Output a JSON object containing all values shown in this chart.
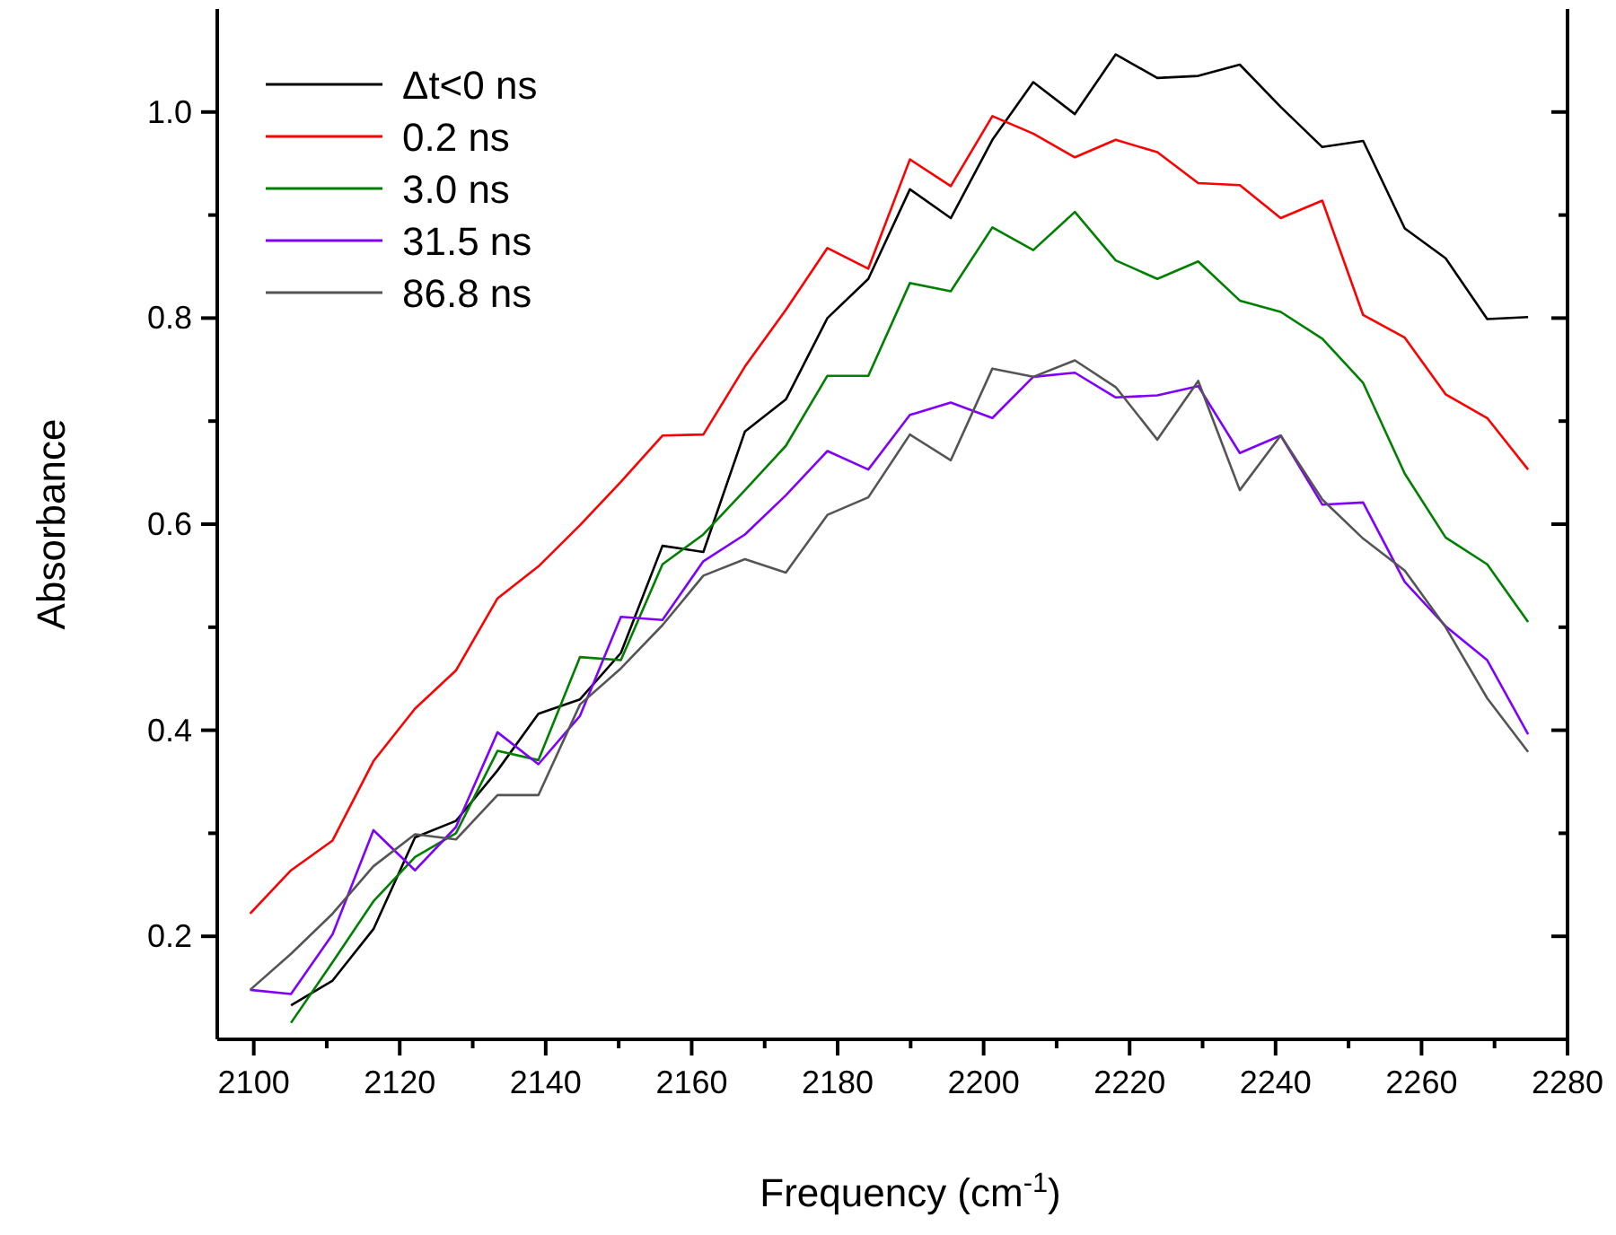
{
  "chart_data": {
    "type": "line",
    "xlabel": "Frequency (cm$^{-1}$)",
    "ylabel": "Absorbance",
    "x": [
      2099.5,
      2105.1,
      2110.8,
      2116.4,
      2122.1,
      2127.7,
      2133.4,
      2139.0,
      2144.7,
      2150.3,
      2156.0,
      2161.6,
      2167.3,
      2172.9,
      2178.6,
      2184.2,
      2189.9,
      2195.5,
      2201.2,
      2206.8,
      2212.5,
      2218.1,
      2223.8,
      2229.4,
      2235.1,
      2240.7,
      2246.4,
      2252.0,
      2257.7,
      2263.3,
      2269.0,
      2274.6
    ],
    "series": [
      {
        "name": "Δt<0 ns",
        "color": "#000000",
        "values": [
          null,
          0.133,
          0.157,
          0.207,
          0.296,
          0.312,
          0.361,
          0.416,
          0.43,
          0.475,
          0.579,
          0.573,
          0.69,
          0.721,
          0.8,
          0.838,
          0.925,
          0.897,
          0.973,
          1.029,
          0.998,
          1.056,
          1.033,
          1.035,
          1.046,
          1.005,
          0.966,
          0.972,
          0.887,
          0.858,
          0.799,
          0.801
        ]
      },
      {
        "name": "0.2 ns",
        "color": "#ff0000",
        "values": [
          0.222,
          0.264,
          0.293,
          0.37,
          0.421,
          0.458,
          0.528,
          0.559,
          0.599,
          0.641,
          0.686,
          0.687,
          0.753,
          0.808,
          0.868,
          0.848,
          0.954,
          0.928,
          0.996,
          0.979,
          0.956,
          0.973,
          0.961,
          0.931,
          0.929,
          0.897,
          0.914,
          0.803,
          0.781,
          0.726,
          0.703,
          0.653
        ]
      },
      {
        "name": "3.0 ns",
        "color": "#008000",
        "values": [
          null,
          0.116,
          0.175,
          0.234,
          0.277,
          0.3,
          0.38,
          0.371,
          0.471,
          0.468,
          0.561,
          0.59,
          0.633,
          0.676,
          0.744,
          0.744,
          0.834,
          0.826,
          0.888,
          0.866,
          0.903,
          0.856,
          0.838,
          0.855,
          0.817,
          0.806,
          0.78,
          0.737,
          0.649,
          0.587,
          0.561,
          0.505
        ]
      },
      {
        "name": "31.5 ns",
        "color": "#8000ff",
        "values": [
          0.148,
          0.144,
          0.202,
          0.303,
          0.264,
          0.306,
          0.398,
          0.367,
          0.414,
          0.51,
          0.507,
          0.564,
          0.59,
          0.628,
          0.671,
          0.653,
          0.706,
          0.718,
          0.703,
          0.743,
          0.747,
          0.723,
          0.725,
          0.734,
          0.669,
          0.686,
          0.619,
          0.621,
          0.544,
          0.501,
          0.468,
          0.396
        ]
      },
      {
        "name": "86.8 ns",
        "color": "#555555",
        "values": [
          0.148,
          0.183,
          0.222,
          0.268,
          0.299,
          0.294,
          0.337,
          0.337,
          0.425,
          0.46,
          0.502,
          0.55,
          0.566,
          0.553,
          0.609,
          0.626,
          0.687,
          0.662,
          0.751,
          0.743,
          0.759,
          0.733,
          0.682,
          0.739,
          0.633,
          0.686,
          0.624,
          0.586,
          0.555,
          0.5,
          0.431,
          0.379
        ]
      }
    ],
    "xlim": [
      2095,
      2280
    ],
    "ylim": [
      0.1,
      1.1
    ],
    "xticks": [
      2100,
      {
        "value": 2110,
        "label": null
      },
      2120,
      {
        "value": 2130,
        "label": null
      },
      2140,
      {
        "value": 2150,
        "label": null
      },
      2160,
      {
        "value": 2170,
        "label": null
      },
      2180,
      {
        "value": 2190,
        "label": null
      },
      2200,
      {
        "value": 2210,
        "label": null
      },
      2220,
      {
        "value": 2230,
        "label": null
      },
      2240,
      {
        "value": 2250,
        "label": null
      },
      2260,
      {
        "value": 2270,
        "label": null
      },
      2280
    ],
    "yticks": [
      0.2,
      {
        "value": 0.3,
        "label": null
      },
      0.4,
      {
        "value": 0.5,
        "label": null
      },
      0.6,
      {
        "value": 0.7,
        "label": null
      },
      0.8,
      {
        "value": 0.9,
        "label": null
      },
      {
        "value": 1.0,
        "label": "1.0"
      }
    ],
    "legend": "top left",
    "grid": false,
    "marker": "none",
    "line_style": "solid"
  }
}
